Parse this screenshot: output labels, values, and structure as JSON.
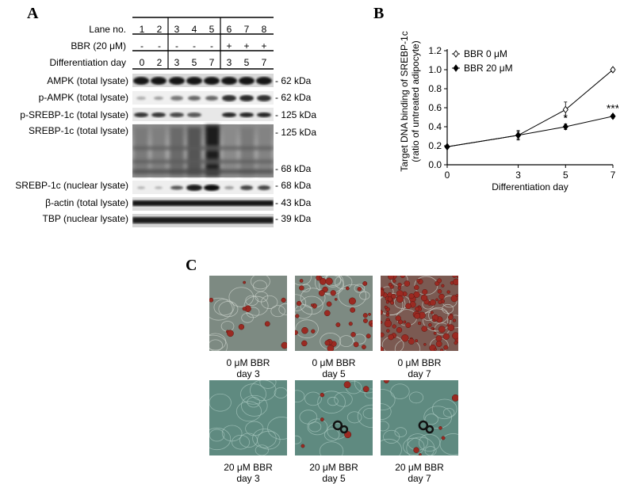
{
  "panels": {
    "a": "A",
    "b": "B",
    "c": "C"
  },
  "blot_header": {
    "rows": [
      {
        "label": "Lane no.",
        "cells": [
          "1",
          "2",
          "3",
          "4",
          "5",
          "6",
          "7",
          "8"
        ]
      },
      {
        "label": "BBR (20 μM)",
        "cells": [
          "-",
          "-",
          "-",
          "-",
          "-",
          "+",
          "+",
          "+"
        ]
      },
      {
        "label": "Differentiation day",
        "cells": [
          "0",
          "2",
          "3",
          "5",
          "7",
          "3",
          "5",
          "7"
        ]
      }
    ]
  },
  "blot_rows": [
    {
      "label": "AMPK (total lysate)",
      "markers": [
        "- 62 kDa"
      ]
    },
    {
      "label": "p-AMPK (total lysate)",
      "markers": [
        "- 62 kDa"
      ]
    },
    {
      "label": "p-SREBP-1c (total lysate)",
      "markers": [
        "- 125 kDa"
      ]
    },
    {
      "label": "SREBP-1c (total lysate)",
      "markers": [
        "- 125 kDa",
        "- 68 kDa"
      ]
    },
    {
      "label": "SREBP-1c (nuclear lysate)",
      "markers": [
        "- 68 kDa"
      ]
    },
    {
      "label": "β-actin (total lysate)",
      "markers": [
        "- 43 kDa"
      ]
    },
    {
      "label": "TBP (nuclear lysate)",
      "markers": [
        "- 39 kDa"
      ]
    }
  ],
  "chart_data": {
    "type": "line",
    "ylabel": "Target DNA binding of SREBP-1c (ratio of untreated adipocyte)",
    "ylabel_lines": [
      "Target DNA binding of SREBP-1c",
      "(ratio of untreated adipocyte)"
    ],
    "xlabel": "Differentiation day",
    "x": [
      0,
      3,
      5,
      7
    ],
    "xticks": [
      "0",
      "3",
      "5",
      "7"
    ],
    "ylim": [
      0,
      1.2
    ],
    "yticks": [
      "0.0",
      "0.2",
      "0.4",
      "0.6",
      "0.8",
      "1.0",
      "1.2"
    ],
    "series": [
      {
        "name": "BBR 0 μM",
        "marker": "open-diamond",
        "values": [
          0.19,
          0.31,
          0.58,
          1.0
        ],
        "errors": [
          0.0,
          0.05,
          0.08,
          0.02
        ]
      },
      {
        "name": "BBR 20 μM",
        "marker": "filled-diamond",
        "values": [
          0.19,
          0.31,
          0.4,
          0.51
        ],
        "errors": [
          0.0,
          0.04,
          0.03,
          0.02
        ]
      }
    ],
    "annotations": [
      {
        "x": 5,
        "text": "*"
      },
      {
        "x": 7,
        "text": "***"
      }
    ],
    "legend_position": "top-left",
    "grid": false
  },
  "micrographs": [
    {
      "caption_line1": "0 μM BBR",
      "caption_line2": "day 3",
      "stain": "low"
    },
    {
      "caption_line1": "0 μM BBR",
      "caption_line2": "day 5",
      "stain": "medium"
    },
    {
      "caption_line1": "0 μM BBR",
      "caption_line2": "day 7",
      "stain": "high"
    },
    {
      "caption_line1": "20 μM BBR",
      "caption_line2": "day 3",
      "stain": "none"
    },
    {
      "caption_line1": "20 μM BBR",
      "caption_line2": "day 5",
      "stain": "trace"
    },
    {
      "caption_line1": "20 μM BBR",
      "caption_line2": "day 7",
      "stain": "trace"
    }
  ],
  "colors": {
    "stain_red": "#9a2a22",
    "cell_teal": "#4e7b74",
    "blot_dark": "#111111"
  }
}
